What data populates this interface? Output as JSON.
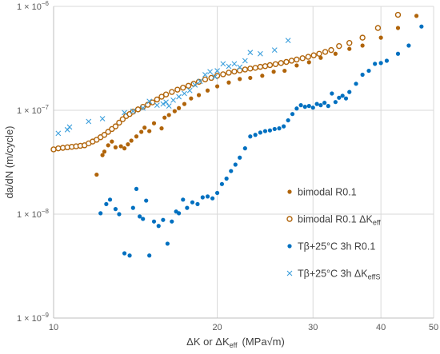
{
  "chart_data": {
    "type": "scatter",
    "x_scale": "log",
    "y_scale": "log",
    "xlim": [
      10,
      50
    ],
    "ylim": [
      1e-09,
      1e-06
    ],
    "x_ticks": [
      {
        "value": 10,
        "label": "10"
      },
      {
        "value": 20,
        "label": "20"
      },
      {
        "value": 30,
        "label": "30"
      },
      {
        "value": 40,
        "label": "40"
      },
      {
        "value": 50,
        "label": "50"
      }
    ],
    "y_ticks": [
      {
        "value": 1e-09,
        "base": "1 × 10",
        "exp": "−9"
      },
      {
        "value": 1e-08,
        "base": "1 × 10",
        "exp": "−8"
      },
      {
        "value": 1e-07,
        "base": "1 × 10",
        "exp": "−7"
      },
      {
        "value": 1e-06,
        "base": "1 × 10",
        "exp": "−6"
      }
    ],
    "grid": true,
    "xlabel": "ΔK or ΔK",
    "xlabel_sub": "eff",
    "xlabel_unit": "(MPa√m)",
    "ylabel": "da/dN (m/cycle)",
    "legend_position": "right",
    "series": [
      {
        "name": "bimodal R0.1",
        "marker": "filled-circle",
        "color": "#b0640a",
        "x": [
          12.0,
          12.3,
          12.4,
          12.6,
          12.8,
          13.0,
          13.3,
          13.5,
          13.7,
          13.9,
          14.2,
          14.5,
          14.7,
          15.0,
          15.3,
          15.8,
          16.0,
          16.3,
          16.7,
          17.0,
          17.4,
          17.9,
          18.5,
          19.2,
          20.0,
          21.0,
          22.0,
          23.0,
          24.2,
          25.4,
          26.6,
          28.0,
          29.5,
          31.0,
          33.0,
          35.0,
          37.0,
          40.0,
          43.0,
          46.5
        ],
        "y": [
          2.4e-08,
          3.7e-08,
          4e-08,
          4.6e-08,
          5e-08,
          4.4e-08,
          4.5e-08,
          4.3e-08,
          4.7e-08,
          5.1e-08,
          5.6e-08,
          6.2e-08,
          6.8e-08,
          6.3e-08,
          7.5e-08,
          6.7e-08,
          8.5e-08,
          9e-08,
          9.8e-08,
          1.05e-07,
          1.15e-07,
          1.3e-07,
          1.4e-07,
          1.55e-07,
          1.7e-07,
          1.85e-07,
          2e-07,
          2.05e-07,
          2.15e-07,
          2.35e-07,
          2.4e-07,
          2.7e-07,
          2.9e-07,
          3.2e-07,
          3.5e-07,
          3.9e-07,
          4.2e-07,
          5e-07,
          6.2e-07,
          8.1e-07
        ]
      },
      {
        "name": "bimodal R0.1 ΔK",
        "name_sub": "eff",
        "marker": "open-circle",
        "color": "#b0640a",
        "x": [
          10.0,
          10.2,
          10.4,
          10.6,
          10.8,
          11.0,
          11.2,
          11.4,
          11.6,
          11.8,
          12.0,
          12.2,
          12.4,
          12.6,
          12.8,
          13.0,
          13.2,
          13.4,
          13.6,
          13.8,
          14.0,
          14.3,
          14.6,
          14.9,
          15.2,
          15.5,
          15.8,
          16.1,
          16.5,
          16.9,
          17.3,
          17.7,
          18.1,
          18.5,
          19.0,
          19.5,
          20.0,
          20.5,
          21.0,
          21.5,
          22.0,
          22.5,
          23.0,
          23.5,
          24.0,
          24.5,
          25.0,
          25.6,
          26.2,
          26.8,
          27.4,
          28.0,
          28.7,
          29.4,
          30.1,
          30.8,
          31.6,
          32.4,
          33.5,
          35.0,
          37.0,
          39.5,
          43.0
        ],
        "y": [
          4.2e-08,
          4.3e-08,
          4.35e-08,
          4.4e-08,
          4.45e-08,
          4.5e-08,
          4.55e-08,
          4.6e-08,
          4.8e-08,
          5e-08,
          5.2e-08,
          5.5e-08,
          5.8e-08,
          6.2e-08,
          6.6e-08,
          7e-08,
          7.6e-08,
          8.2e-08,
          8.8e-08,
          9.2e-08,
          9.7e-08,
          1.02e-07,
          1.08e-07,
          1.13e-07,
          1.19e-07,
          1.27e-07,
          1.35e-07,
          1.42e-07,
          1.5e-07,
          1.58e-07,
          1.65e-07,
          1.72e-07,
          1.8e-07,
          1.88e-07,
          1.98e-07,
          2.05e-07,
          2.15e-07,
          2.22e-07,
          2.3e-07,
          2.36e-07,
          2.42e-07,
          2.47e-07,
          2.52e-07,
          2.56e-07,
          2.62e-07,
          2.66e-07,
          2.72e-07,
          2.78e-07,
          2.85e-07,
          2.92e-07,
          3e-07,
          3.08e-07,
          3.17e-07,
          3.27e-07,
          3.38e-07,
          3.5e-07,
          3.65e-07,
          3.8e-07,
          4.15e-07,
          4.45e-07,
          5e-07,
          6.2e-07,
          8.3e-07
        ]
      },
      {
        "name": "Tβ+25°C 3h R0.1",
        "marker": "filled-circle",
        "color": "#0070c0",
        "x": [
          12.2,
          12.5,
          12.7,
          13.0,
          13.2,
          13.5,
          13.8,
          14.0,
          14.2,
          14.4,
          14.6,
          14.8,
          15.0,
          15.3,
          15.6,
          15.9,
          16.2,
          16.5,
          16.8,
          17.0,
          17.3,
          17.6,
          18.0,
          18.4,
          18.8,
          19.2,
          19.6,
          20.0,
          20.4,
          20.8,
          21.2,
          21.6,
          22.0,
          22.5,
          23.0,
          23.5,
          24.0,
          24.5,
          25.0,
          25.5,
          26.0,
          26.5,
          27.0,
          27.5,
          28.0,
          28.5,
          29.0,
          29.5,
          30.0,
          30.5,
          31.0,
          31.5,
          32.0,
          32.5,
          33.0,
          33.5,
          34.0,
          34.5,
          35.0,
          36.0,
          37.0,
          38.0,
          39.0,
          40.0,
          41.0,
          43.0,
          45.0,
          47.5
        ],
        "y": [
          1.02e-08,
          1.25e-08,
          1.38e-08,
          1.12e-08,
          1e-08,
          4.2e-09,
          4e-09,
          1.15e-08,
          1.75e-08,
          9.5e-09,
          9e-09,
          1.35e-08,
          4e-09,
          8.5e-09,
          7.7e-09,
          8.8e-09,
          5.2e-09,
          8.5e-09,
          1.06e-08,
          1.02e-08,
          1.38e-08,
          1.15e-08,
          1.3e-08,
          1.25e-08,
          1.45e-08,
          1.48e-08,
          1.42e-08,
          1.6e-08,
          1.95e-08,
          2.2e-08,
          2.6e-08,
          3e-08,
          3.5e-08,
          4.3e-08,
          5.6e-08,
          5.8e-08,
          6.1e-08,
          6.3e-08,
          6.4e-08,
          6.6e-08,
          6.7e-08,
          7e-08,
          8e-08,
          9.2e-08,
          1.04e-07,
          1.12e-07,
          1.08e-07,
          1.1e-07,
          1.06e-07,
          1.15e-07,
          1.12e-07,
          1.18e-07,
          1.1e-07,
          1.45e-07,
          1.2e-07,
          1.32e-07,
          1.38e-07,
          1.3e-07,
          1.5e-07,
          1.8e-07,
          2.2e-07,
          2.4e-07,
          2.8e-07,
          2.85e-07,
          3e-07,
          3.5e-07,
          4.2e-07,
          6.4e-07
        ]
      },
      {
        "name": "Tβ+25°C 3h ΔK",
        "name_sub": "effS",
        "marker": "cross",
        "color": "#3c9fdc",
        "x": [
          10.2,
          10.6,
          10.7,
          11.6,
          12.3,
          13.5,
          14.0,
          14.6,
          15.0,
          15.5,
          15.9,
          16.1,
          16.3,
          16.6,
          17.0,
          17.4,
          17.8,
          18.2,
          18.6,
          19.0,
          19.4,
          19.8,
          20.0,
          20.5,
          21.0,
          21.5,
          22.0,
          22.5,
          23.0,
          24.0,
          25.5,
          27.0
        ],
        "y": [
          6e-08,
          6.5e-08,
          6.9e-08,
          7.8e-08,
          8.3e-08,
          9.5e-08,
          9.8e-08,
          1.05e-07,
          1.22e-07,
          1.12e-07,
          1.15e-07,
          1.2e-07,
          1.1e-07,
          1.25e-07,
          1.35e-07,
          1.45e-07,
          1.55e-07,
          1.75e-07,
          1.9e-07,
          2.2e-07,
          2.35e-07,
          2.1e-07,
          2.4e-07,
          2.8e-07,
          2.65e-07,
          2.8e-07,
          2.6e-07,
          3e-07,
          3.6e-07,
          3.5e-07,
          3.8e-07,
          4.7e-07
        ]
      }
    ]
  }
}
